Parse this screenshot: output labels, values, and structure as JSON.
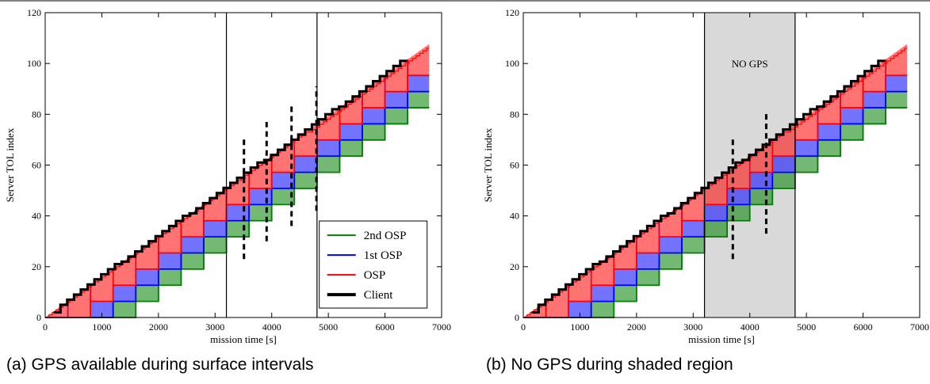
{
  "captions": {
    "a": "(a) GPS available during surface intervals",
    "b": "(b) No GPS during shaded region"
  },
  "colors": {
    "second_osp": "#008000",
    "first_osp": "#0000ff",
    "osp": "#ff0000",
    "client": "#000000",
    "second_osp_fill": "#7fbf7f",
    "first_osp_fill": "#8080ff",
    "osp_fill": "#ff8080",
    "shade": "#d9d9d9"
  },
  "chart_data": [
    {
      "id": "a",
      "type": "line",
      "xlabel": "mission time [s]",
      "ylabel": "Server TOL index",
      "xlim": [
        0,
        7000
      ],
      "ylim": [
        0,
        120
      ],
      "xticks": [
        "0",
        "1000",
        "2000",
        "3000",
        "4000",
        "5000",
        "6000",
        "7000"
      ],
      "yticks": [
        "0",
        "20",
        "40",
        "60",
        "80",
        "100",
        "120"
      ],
      "step_period_s": 400,
      "server_rate_per_s": 0.01588,
      "osp_lag_steps": [
        1,
        2,
        3
      ],
      "series": [
        {
          "name": "2nd OSP",
          "color": "#008000"
        },
        {
          "name": "1st OSP",
          "color": "#0000ff"
        },
        {
          "name": "OSP",
          "color": "#ff0000"
        },
        {
          "name": "Client",
          "color": "#000000"
        }
      ],
      "vertical_lines_x": [
        3200,
        4800
      ],
      "shaded_region": null,
      "shaded_label": "",
      "dashed_lines": [
        {
          "x": 3510,
          "y": [
            23,
            71
          ]
        },
        {
          "x": 3910,
          "y": [
            30,
            77
          ]
        },
        {
          "x": 4350,
          "y": [
            36,
            84
          ]
        },
        {
          "x": 4790,
          "y": [
            42,
            91
          ]
        }
      ],
      "legend_position": "lower-right"
    },
    {
      "id": "b",
      "type": "line",
      "xlabel": "mission time [s]",
      "ylabel": "Server TOL index",
      "xlim": [
        0,
        7000
      ],
      "ylim": [
        0,
        120
      ],
      "xticks": [
        "0",
        "1000",
        "2000",
        "3000",
        "4000",
        "5000",
        "6000",
        "7000"
      ],
      "yticks": [
        "0",
        "20",
        "40",
        "60",
        "80",
        "100",
        "120"
      ],
      "step_period_s": 400,
      "server_rate_per_s": 0.01588,
      "osp_lag_steps": [
        1,
        2,
        3
      ],
      "series": [
        {
          "name": "2nd OSP",
          "color": "#008000"
        },
        {
          "name": "1st OSP",
          "color": "#0000ff"
        },
        {
          "name": "OSP",
          "color": "#ff0000"
        },
        {
          "name": "Client",
          "color": "#000000"
        }
      ],
      "vertical_lines_x": [
        3200,
        4800
      ],
      "shaded_region": [
        3200,
        4800
      ],
      "shaded_label": "NO GPS",
      "dashed_lines": [
        {
          "x": 3700,
          "y": [
            23,
            71
          ]
        },
        {
          "x": 4290,
          "y": [
            33,
            81
          ]
        }
      ],
      "legend_position": ""
    }
  ]
}
